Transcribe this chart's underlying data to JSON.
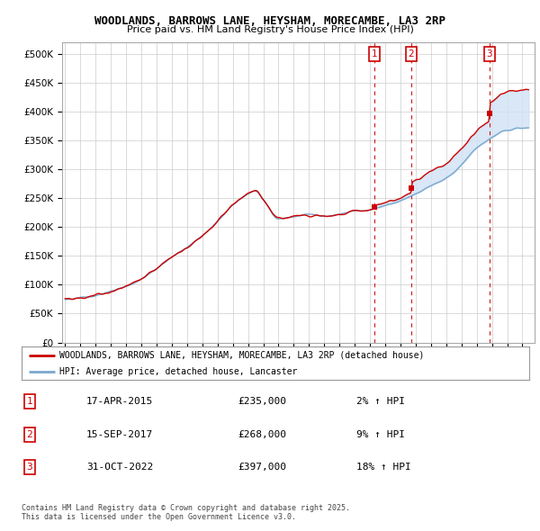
{
  "title": "WOODLANDS, BARROWS LANE, HEYSHAM, MORECAMBE, LA3 2RP",
  "subtitle": "Price paid vs. HM Land Registry's House Price Index (HPI)",
  "ylim": [
    0,
    520000
  ],
  "yticks": [
    0,
    50000,
    100000,
    150000,
    200000,
    250000,
    300000,
    350000,
    400000,
    450000,
    500000
  ],
  "ytick_labels": [
    "£0",
    "£50K",
    "£100K",
    "£150K",
    "£200K",
    "£250K",
    "£300K",
    "£350K",
    "£400K",
    "£450K",
    "£500K"
  ],
  "sale_dates": [
    2015.29,
    2017.71,
    2022.83
  ],
  "sale_prices": [
    235000,
    268000,
    397000
  ],
  "sale_labels": [
    "1",
    "2",
    "3"
  ],
  "legend_line1": "WOODLANDS, BARROWS LANE, HEYSHAM, MORECAMBE, LA3 2RP (detached house)",
  "legend_line2": "HPI: Average price, detached house, Lancaster",
  "table_rows": [
    [
      "1",
      "17-APR-2015",
      "£235,000",
      "2% ↑ HPI"
    ],
    [
      "2",
      "15-SEP-2017",
      "£268,000",
      "9% ↑ HPI"
    ],
    [
      "3",
      "31-OCT-2022",
      "£397,000",
      "18% ↑ HPI"
    ]
  ],
  "footer": "Contains HM Land Registry data © Crown copyright and database right 2025.\nThis data is licensed under the Open Government Licence v3.0.",
  "line_color_red": "#cc0000",
  "line_color_blue": "#7aa8cc",
  "shade_color": "#ddeeff",
  "background_color": "#ffffff",
  "grid_color": "#cccccc"
}
